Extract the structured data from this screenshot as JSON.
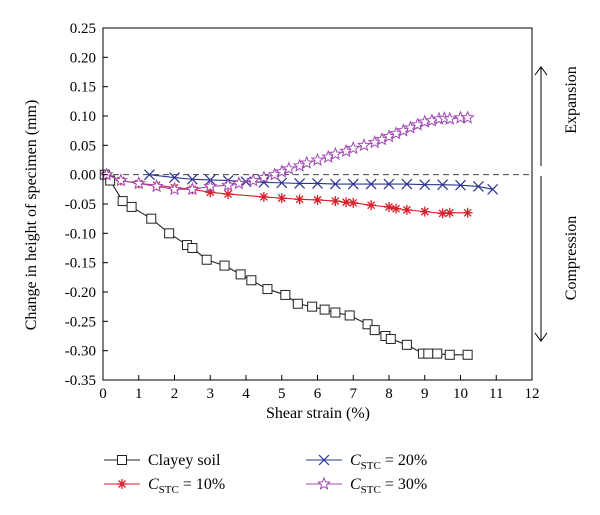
{
  "colors": {
    "axis": "#000000",
    "zero_line": "#444444",
    "clayey": "#222222",
    "c10": "#d81e2a",
    "c20": "#2b3591",
    "c30": "#a04ab2"
  },
  "annotations": {
    "expansion": "Expansion",
    "compression": "Compression"
  },
  "legend": {
    "clayey": "Clayey soil",
    "c10": {
      "var": "C",
      "sub": "STC",
      "rest": " = 10%"
    },
    "c20": {
      "var": "C",
      "sub": "STC",
      "rest": " = 20%"
    },
    "c30": {
      "var": "C",
      "sub": "STC",
      "rest": " = 30%"
    }
  },
  "chart_data": {
    "type": "line",
    "xlabel": "Shear strain (%)",
    "ylabel": "Change in height of specimen (mm)",
    "xlim": [
      0,
      12
    ],
    "ylim": [
      -0.35,
      0.25
    ],
    "xticks": [
      0,
      1,
      2,
      3,
      4,
      5,
      6,
      7,
      8,
      9,
      10,
      11,
      12
    ],
    "yticks": [
      -0.35,
      -0.3,
      -0.25,
      -0.2,
      -0.15,
      -0.1,
      -0.05,
      0.0,
      0.05,
      0.1,
      0.15,
      0.2,
      0.25
    ],
    "reference_line": {
      "y": 0,
      "style": "dashed"
    },
    "series": [
      {
        "name": "Clayey soil",
        "marker": "square",
        "x": [
          0.05,
          0.2,
          0.55,
          0.8,
          1.35,
          1.85,
          2.35,
          2.5,
          2.9,
          3.4,
          3.85,
          4.15,
          4.6,
          5.1,
          5.45,
          5.85,
          6.2,
          6.5,
          6.9,
          7.4,
          7.6,
          7.9,
          8.05,
          8.5,
          8.95,
          9.1,
          9.35,
          9.7,
          10.2
        ],
        "y": [
          0.0,
          -0.01,
          -0.045,
          -0.055,
          -0.075,
          -0.1,
          -0.12,
          -0.125,
          -0.145,
          -0.155,
          -0.17,
          -0.18,
          -0.195,
          -0.205,
          -0.22,
          -0.225,
          -0.23,
          -0.235,
          -0.24,
          -0.255,
          -0.265,
          -0.275,
          -0.28,
          -0.29,
          -0.305,
          -0.305,
          -0.305,
          -0.307,
          -0.307
        ]
      },
      {
        "name": "C_STC = 10%",
        "marker": "asterisk",
        "x": [
          0.1,
          0.5,
          1.0,
          1.5,
          2.0,
          2.5,
          3.0,
          3.5,
          4.5,
          5.0,
          5.5,
          6.0,
          6.5,
          6.8,
          7.0,
          7.5,
          8.0,
          8.2,
          8.5,
          9.0,
          9.5,
          9.7,
          10.2
        ],
        "y": [
          0.0,
          -0.01,
          -0.015,
          -0.018,
          -0.022,
          -0.025,
          -0.03,
          -0.033,
          -0.038,
          -0.04,
          -0.042,
          -0.043,
          -0.045,
          -0.047,
          -0.048,
          -0.052,
          -0.055,
          -0.058,
          -0.06,
          -0.063,
          -0.066,
          -0.065,
          -0.065
        ]
      },
      {
        "name": "C_STC = 20%",
        "marker": "cross",
        "x": [
          1.3,
          2.0,
          2.5,
          3.0,
          3.5,
          4.0,
          4.5,
          5.0,
          5.5,
          6.0,
          6.5,
          7.0,
          7.5,
          8.0,
          8.5,
          9.0,
          9.5,
          10.0,
          10.5,
          10.9
        ],
        "y": [
          0.0,
          -0.005,
          -0.008,
          -0.009,
          -0.01,
          -0.012,
          -0.013,
          -0.014,
          -0.015,
          -0.015,
          -0.016,
          -0.016,
          -0.016,
          -0.016,
          -0.016,
          -0.017,
          -0.017,
          -0.018,
          -0.02,
          -0.025
        ]
      },
      {
        "name": "C_STC = 30%",
        "marker": "star",
        "x": [
          0.1,
          0.5,
          1.0,
          1.5,
          2.0,
          2.5,
          3.0,
          3.5,
          3.8,
          4.2,
          4.5,
          4.8,
          5.0,
          5.2,
          5.5,
          5.7,
          6.0,
          6.3,
          6.5,
          6.8,
          7.0,
          7.3,
          7.6,
          7.8,
          8.0,
          8.2,
          8.4,
          8.6,
          8.8,
          9.0,
          9.2,
          9.4,
          9.55,
          9.7,
          10.0,
          10.2
        ],
        "y": [
          0.0,
          -0.01,
          -0.015,
          -0.02,
          -0.025,
          -0.025,
          -0.02,
          -0.018,
          -0.015,
          -0.01,
          -0.005,
          0.0,
          0.005,
          0.01,
          0.015,
          0.02,
          0.025,
          0.03,
          0.035,
          0.04,
          0.045,
          0.05,
          0.055,
          0.06,
          0.065,
          0.07,
          0.075,
          0.08,
          0.085,
          0.09,
          0.092,
          0.095,
          0.096,
          0.095,
          0.097,
          0.097
        ]
      }
    ]
  }
}
